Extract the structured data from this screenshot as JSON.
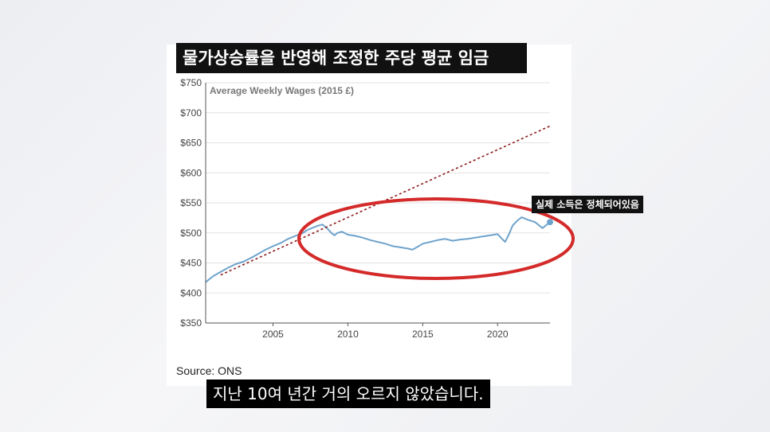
{
  "title": "물가상승률을 반영해 조정한 주당 평균 임금",
  "callout": "실제 소득은 정체되어있음",
  "source": "Source: ONS",
  "subtitle": "지난 10여 년간 거의 오르지 않았습니다.",
  "chart_data": {
    "type": "line",
    "title": "Average Weekly Wages (2015 £)",
    "ylim": [
      350,
      750
    ],
    "xlim": [
      2000.5,
      2023.5
    ],
    "yticks": [
      350,
      400,
      450,
      500,
      550,
      600,
      650,
      700,
      750
    ],
    "ytick_labels": [
      "$350",
      "$400",
      "$450",
      "$500",
      "$550",
      "$600",
      "$650",
      "$700",
      "$750"
    ],
    "xticks": [
      2005,
      2010,
      2015,
      2020
    ],
    "xtick_labels": [
      "2005",
      "2010",
      "2015",
      "2020"
    ],
    "grid": "horizontal",
    "series": [
      {
        "style": "solid",
        "color": "#6fa3cc",
        "x": [
          2000.5,
          2001.0,
          2001.5,
          2002.0,
          2002.5,
          2003.0,
          2003.5,
          2004.0,
          2004.5,
          2005.0,
          2005.5,
          2006.0,
          2006.5,
          2007.0,
          2007.3,
          2007.6,
          2008.0,
          2008.3,
          2008.6,
          2008.9,
          2009.1,
          2009.3,
          2009.6,
          2010.0,
          2010.5,
          2011.0,
          2011.5,
          2012.0,
          2012.5,
          2013.0,
          2013.5,
          2014.0,
          2014.3,
          2014.6,
          2015.0,
          2015.5,
          2016.0,
          2016.5,
          2017.0,
          2017.5,
          2018.0,
          2018.5,
          2019.0,
          2019.5,
          2020.0,
          2020.3,
          2020.5,
          2020.8,
          2021.0,
          2021.3,
          2021.6,
          2022.0,
          2022.5,
          2023.0,
          2023.5
        ],
        "y": [
          418,
          428,
          435,
          442,
          448,
          452,
          458,
          465,
          472,
          478,
          483,
          490,
          495,
          500,
          505,
          508,
          512,
          514,
          508,
          500,
          496,
          500,
          502,
          497,
          495,
          492,
          488,
          485,
          482,
          478,
          476,
          474,
          472,
          476,
          482,
          485,
          488,
          490,
          487,
          489,
          490,
          492,
          494,
          496,
          498,
          490,
          485,
          500,
          512,
          520,
          526,
          522,
          518,
          508,
          518
        ]
      },
      {
        "style": "dashed",
        "color": "#8b1a1a",
        "x": [
          2001.5,
          2023.5
        ],
        "y": [
          430,
          678
        ]
      }
    ],
    "highlight_marker": {
      "x": 2023.5,
      "y": 518
    }
  }
}
